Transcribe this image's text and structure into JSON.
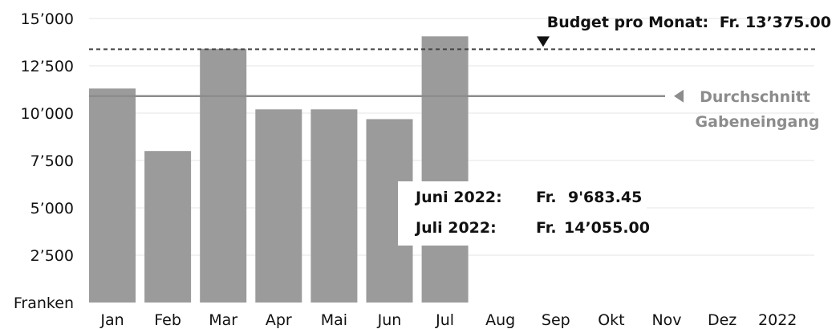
{
  "chart_data": {
    "type": "bar",
    "categories": [
      "Jan",
      "Feb",
      "Mar",
      "Apr",
      "Mai",
      "Jun",
      "Jul",
      "Aug",
      "Sep",
      "Okt",
      "Nov",
      "Dez",
      "2022"
    ],
    "values": [
      11300,
      8000,
      13400,
      10200,
      10200,
      9683.45,
      14055,
      null,
      null,
      null,
      null,
      null,
      null
    ],
    "ylabel": "Franken",
    "ylim": [
      0,
      15000
    ],
    "yticks": [
      2500,
      5000,
      7500,
      10000,
      12500,
      15000
    ],
    "ytick_labels": [
      "2’500",
      "5’000",
      "7’500",
      "10’000",
      "12’500",
      "15’000"
    ],
    "grid": true,
    "bar_color": "#9b9b9b",
    "budget": {
      "value": 13375,
      "label": "Budget pro Monat:",
      "amount": "Fr. 13’375.00",
      "line_color": "#444444"
    },
    "average": {
      "value": 10900,
      "label_line1": "Durchschnitt",
      "label_line2": "Gabeneingang",
      "color": "#8c8c8c"
    },
    "callout": {
      "rows": [
        {
          "label": "Juni 2022:",
          "currency": "Fr.",
          "amount": "9'683.45"
        },
        {
          "label": "Juli 2022:",
          "currency": "Fr.",
          "amount": "14’055.00"
        }
      ]
    }
  }
}
